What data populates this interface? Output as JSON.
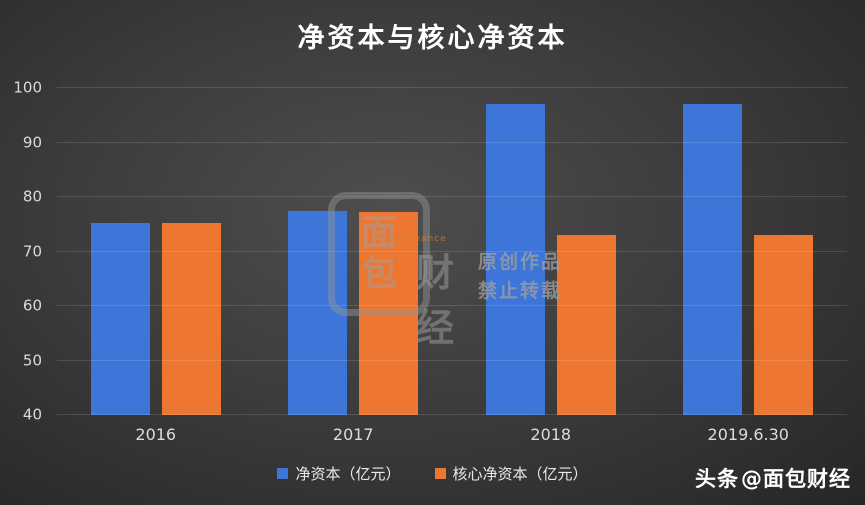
{
  "chart_data": {
    "type": "bar",
    "title": "净资本与核心净资本",
    "categories": [
      "2016",
      "2017",
      "2018",
      "2019.6.30"
    ],
    "series": [
      {
        "name": "净资本（亿元）",
        "color": "#3D76D8",
        "values": [
          75.3,
          77.4,
          97.1,
          97.1
        ]
      },
      {
        "name": "核心净资本（亿元）",
        "color": "#ED7630",
        "values": [
          75.2,
          77.3,
          73.1,
          73.1
        ]
      }
    ],
    "ylim": [
      40,
      100
    ],
    "yticks": [
      40,
      50,
      60,
      70,
      80,
      90,
      100
    ],
    "grid": true,
    "legend_position": "bottom"
  },
  "watermark": {
    "logo_char_top": "面",
    "logo_char_bottom": "包",
    "logo_caijing": "财经",
    "brand_small": "Bread Finance",
    "line1": "原创作品",
    "line2": "禁止转载"
  },
  "footer": {
    "credit_prefix": "头条",
    "credit_handle": "@面包财经"
  }
}
